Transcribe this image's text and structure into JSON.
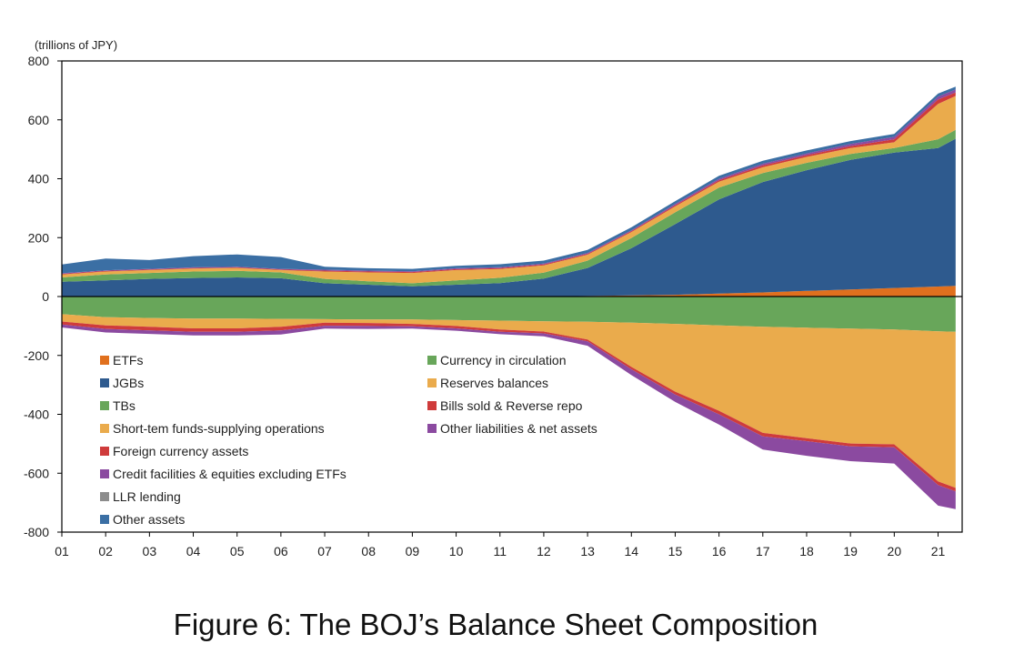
{
  "caption": "Figure 6: The BOJ’s Balance Sheet Composition",
  "chart_data": {
    "type": "area",
    "title": "",
    "unit_label": "(trillions of JPY)",
    "ylabel": "",
    "xlabel": "",
    "ylim": [
      -800,
      800
    ],
    "yticks": [
      800,
      600,
      400,
      200,
      0,
      -200,
      -400,
      -600,
      -800
    ],
    "x": [
      2001,
      2002,
      2003,
      2004,
      2005,
      2006,
      2007,
      2008,
      2009,
      2010,
      2011,
      2012,
      2013,
      2014,
      2015,
      2016,
      2017,
      2018,
      2019,
      2020,
      2021,
      2021.4
    ],
    "xticks": [
      "01",
      "02",
      "03",
      "04",
      "05",
      "06",
      "07",
      "08",
      "09",
      "10",
      "11",
      "12",
      "13",
      "14",
      "15",
      "16",
      "17",
      "18",
      "19",
      "20",
      "21"
    ],
    "grid": false,
    "legend_position": "bottom-left, inside plot, two columns",
    "assets": [
      {
        "name": "ETFs",
        "color": "#e0701e",
        "values": [
          0,
          0,
          0,
          0,
          0,
          0,
          0,
          0,
          0,
          0,
          0.5,
          1,
          2,
          4,
          6,
          10,
          14,
          19,
          24,
          29,
          34,
          36
        ]
      },
      {
        "name": "JGBs",
        "color": "#2e5a8e",
        "values": [
          50,
          55,
          60,
          63,
          65,
          62,
          45,
          40,
          35,
          40,
          45,
          60,
          95,
          160,
          240,
          320,
          375,
          410,
          440,
          460,
          470,
          500
        ]
      },
      {
        "name": "TBs",
        "color": "#68a65a",
        "values": [
          15,
          20,
          20,
          22,
          22,
          20,
          15,
          12,
          10,
          15,
          18,
          20,
          25,
          35,
          40,
          40,
          30,
          25,
          20,
          15,
          30,
          30
        ]
      },
      {
        "name": "Short-tem funds-supplying operations",
        "color": "#eaab4c",
        "values": [
          10,
          10,
          10,
          10,
          10,
          8,
          25,
          30,
          35,
          35,
          30,
          25,
          20,
          20,
          20,
          20,
          20,
          20,
          20,
          20,
          120,
          115
        ]
      },
      {
        "name": "Foreign currency assets",
        "color": "#cf3b3b",
        "values": [
          2,
          2,
          2,
          2,
          2,
          2,
          3,
          3,
          3,
          3,
          3,
          3,
          3,
          3,
          4,
          5,
          6,
          6,
          7,
          10,
          15,
          12
        ]
      },
      {
        "name": "Credit facilities & equities excluding ETFs",
        "color": "#8b4aa0",
        "values": [
          2,
          2,
          2,
          2,
          2,
          2,
          3,
          3,
          3,
          3,
          3,
          3,
          3,
          3,
          4,
          5,
          6,
          6,
          7,
          8,
          10,
          10
        ]
      },
      {
        "name": "LLR lending",
        "color": "#8c8c8c",
        "values": [
          0,
          0,
          0,
          0,
          0,
          0,
          0,
          0,
          0,
          0,
          0,
          0,
          0,
          0,
          0,
          0,
          0,
          0,
          0,
          0,
          0,
          0
        ]
      },
      {
        "name": "Other assets",
        "color": "#3b6fa4",
        "values": [
          30,
          40,
          30,
          38,
          42,
          40,
          10,
          8,
          8,
          8,
          10,
          10,
          10,
          10,
          10,
          10,
          10,
          10,
          10,
          10,
          10,
          10
        ]
      }
    ],
    "liabilities": [
      {
        "name": "Currency in circulation",
        "color": "#68a65a",
        "values": [
          -60,
          -70,
          -73,
          -75,
          -75,
          -76,
          -77,
          -78,
          -78,
          -80,
          -82,
          -84,
          -86,
          -89,
          -93,
          -98,
          -103,
          -106,
          -109,
          -112,
          -118,
          -120
        ]
      },
      {
        "name": "Reserves balances",
        "color": "#eaab4c",
        "values": [
          -25,
          -28,
          -30,
          -33,
          -33,
          -27,
          -12,
          -12,
          -15,
          -20,
          -30,
          -35,
          -60,
          -150,
          -230,
          -290,
          -360,
          -375,
          -390,
          -390,
          -510,
          -530
        ]
      },
      {
        "name": "Bills sold & Reverse repo",
        "color": "#cf3b3b",
        "values": [
          -10,
          -12,
          -12,
          -12,
          -12,
          -12,
          -10,
          -10,
          -8,
          -8,
          -8,
          -6,
          -6,
          -8,
          -10,
          -12,
          -12,
          -10,
          -10,
          -10,
          -12,
          -12
        ]
      },
      {
        "name": "Other liabilities & net assets",
        "color": "#8b4aa0",
        "values": [
          -10,
          -12,
          -12,
          -12,
          -12,
          -14,
          -10,
          -10,
          -8,
          -8,
          -8,
          -10,
          -15,
          -20,
          -25,
          -35,
          -45,
          -50,
          -50,
          -55,
          -70,
          -60
        ]
      }
    ]
  }
}
